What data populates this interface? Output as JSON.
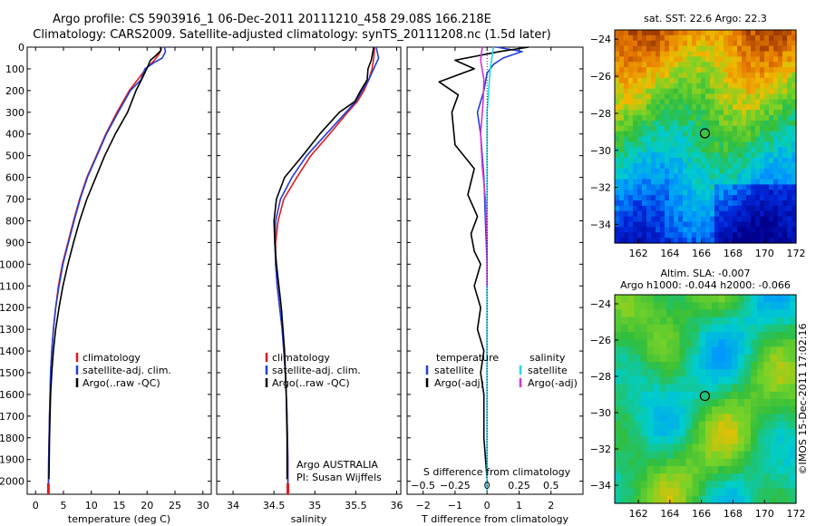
{
  "header": {
    "line1": "Argo profile: CS 5903916_1 06-Dec-2011 20111210_458 29.08S 166.218E",
    "line2": "Climatology: CARS2009. Satellite-adjusted climatology: synTS_20111208.nc (1.5d later)"
  },
  "side_label": "©IMOS 15-Dec-2011 17:02:16",
  "colors": {
    "climatology": "#e41a1c",
    "satellite": "#1f3fd8",
    "argo": "#000000",
    "sat_salinity": "#22d8e6",
    "argo_salinity": "#d633d6"
  },
  "chart_data": [
    {
      "id": "temperature",
      "type": "line",
      "xlabel": "temperature (deg C)",
      "xticks": [
        0,
        5,
        10,
        15,
        20,
        25,
        30
      ],
      "xlim": [
        -1.5,
        31.5
      ],
      "ylabel": "",
      "yticks": [
        0,
        100,
        200,
        300,
        400,
        500,
        600,
        700,
        800,
        900,
        1000,
        1100,
        1200,
        1300,
        1400,
        1500,
        1600,
        1700,
        1800,
        1900,
        2000
      ],
      "ylim": [
        0,
        2060
      ],
      "y_inverted": true,
      "legend": [
        "climatology",
        "satellite-adj. clim.",
        "Argo(..raw -QC)"
      ],
      "legend_position": "lower-center",
      "series": [
        {
          "name": "climatology",
          "color": "#e41a1c",
          "x": [
            22.6,
            22.2,
            21.3,
            19.8,
            18.3,
            16.8,
            14.6,
            12.6,
            10.9,
            9.2,
            7.9,
            6.8,
            5.8,
            4.8,
            4.1,
            3.6,
            3.2,
            2.9,
            2.7,
            2.5,
            2.35,
            2.3
          ],
          "y": [
            0,
            30,
            60,
            100,
            150,
            200,
            300,
            400,
            500,
            600,
            700,
            800,
            900,
            1000,
            1100,
            1200,
            1300,
            1400,
            1500,
            1700,
            1900,
            2050
          ]
        },
        {
          "name": "satellite-adj. clim.",
          "color": "#1f3fd8",
          "x": [
            23.1,
            23.3,
            22.7,
            21.3,
            19.6,
            18.9,
            17.0,
            14.8,
            12.7,
            11.0,
            9.3,
            8.0,
            6.9,
            5.9,
            4.9,
            4.2,
            3.6,
            3.2,
            2.9,
            2.7,
            2.5,
            2.35,
            2.3
          ],
          "y": [
            0,
            20,
            50,
            70,
            100,
            150,
            200,
            300,
            400,
            500,
            600,
            700,
            800,
            900,
            1000,
            1100,
            1200,
            1300,
            1400,
            1500,
            1700,
            1900,
            2050
          ]
        },
        {
          "name": "Argo(..raw -QC)",
          "color": "#000000",
          "x": [
            22.4,
            22.5,
            21.5,
            20.6,
            20.1,
            19.0,
            18.0,
            16.5,
            14.3,
            12.4,
            10.8,
            9.2,
            7.9,
            6.8,
            5.8,
            4.9,
            4.2,
            3.6,
            3.2,
            2.9,
            2.7,
            2.5,
            2.4
          ],
          "y": [
            0,
            15,
            40,
            60,
            90,
            150,
            200,
            300,
            400,
            500,
            600,
            700,
            800,
            900,
            1000,
            1100,
            1200,
            1300,
            1400,
            1500,
            1600,
            1800,
            1990
          ]
        }
      ]
    },
    {
      "id": "salinity",
      "type": "line",
      "xlabel": "salinity",
      "xticks": [
        34,
        34.5,
        35,
        35.5,
        36
      ],
      "xlim": [
        33.8,
        36.05
      ],
      "yticks": [
        0,
        100,
        200,
        300,
        400,
        500,
        600,
        700,
        800,
        900,
        1000,
        1100,
        1200,
        1300,
        1400,
        1500,
        1600,
        1700,
        1800,
        1900,
        2000
      ],
      "ylim": [
        0,
        2060
      ],
      "y_inverted": true,
      "legend": [
        "climatology",
        "satellite-adj. clim.",
        "Argo(..raw -QC)"
      ],
      "legend_position": "lower-center",
      "annotation": [
        "Argo AUSTRALIA",
        "PI: Susan Wijffels"
      ],
      "series": [
        {
          "name": "climatology",
          "color": "#e41a1c",
          "x": [
            35.73,
            35.72,
            35.7,
            35.66,
            35.6,
            35.52,
            35.4,
            35.18,
            34.95,
            34.78,
            34.62,
            34.55,
            34.52,
            34.52,
            34.54,
            34.57,
            34.6,
            34.62,
            34.64,
            34.66,
            34.67,
            34.67
          ],
          "y": [
            0,
            50,
            100,
            150,
            200,
            250,
            300,
            400,
            500,
            600,
            700,
            800,
            900,
            1000,
            1100,
            1200,
            1300,
            1400,
            1500,
            1700,
            1900,
            2050
          ]
        },
        {
          "name": "satellite-adj. clim.",
          "color": "#1f3fd8",
          "x": [
            35.75,
            35.78,
            35.72,
            35.66,
            35.58,
            35.5,
            35.38,
            35.14,
            34.9,
            34.72,
            34.58,
            34.52,
            34.51,
            34.52,
            34.54,
            34.57,
            34.6,
            34.62,
            34.64,
            34.66,
            34.67,
            34.67
          ],
          "y": [
            0,
            50,
            100,
            150,
            200,
            250,
            300,
            400,
            500,
            600,
            700,
            800,
            900,
            1000,
            1100,
            1200,
            1300,
            1400,
            1500,
            1700,
            1900,
            2050
          ]
        },
        {
          "name": "Argo(..raw -QC)",
          "color": "#000000",
          "x": [
            35.72,
            35.69,
            35.65,
            35.64,
            35.56,
            35.49,
            35.3,
            35.06,
            34.85,
            34.63,
            34.53,
            34.5,
            34.51,
            34.53,
            34.56,
            34.59,
            34.61,
            34.63,
            34.65,
            34.66,
            34.66
          ],
          "y": [
            0,
            60,
            100,
            150,
            200,
            250,
            300,
            400,
            500,
            600,
            700,
            800,
            900,
            1000,
            1100,
            1200,
            1300,
            1400,
            1600,
            1800,
            1990
          ]
        }
      ]
    },
    {
      "id": "difference",
      "type": "line",
      "xlabel": "T difference from climatology",
      "xticks": [
        -2,
        -1,
        0,
        1,
        2
      ],
      "xlim": [
        -2.5,
        3.0
      ],
      "xlabel_top": "S difference from climatology",
      "xticks_top": [
        -0.5,
        -0.25,
        0,
        0.25,
        0.5
      ],
      "x_top_labels": [
        "−0.5",
        "−0.25",
        "0",
        "0.25",
        "0.5"
      ],
      "x_top_scale": 0.25,
      "yticks": [
        0,
        100,
        200,
        300,
        400,
        500,
        600,
        700,
        800,
        900,
        1000,
        1100,
        1200,
        1300,
        1400,
        1500,
        1600,
        1700,
        1800,
        1900,
        2000
      ],
      "ylim": [
        0,
        2060
      ],
      "y_inverted": true,
      "legend_groups": [
        {
          "title": "temperature",
          "items": [
            "satellite",
            "Argo(-adj)"
          ]
        },
        {
          "title": "salinity",
          "items": [
            "satellite",
            "Argo(-adj)"
          ]
        }
      ],
      "series": [
        {
          "name": "temperature satellite",
          "color": "#1f3fd8",
          "x": [
            0.3,
            1.1,
            0.5,
            0.2,
            0.0,
            -0.1,
            -0.3,
            -0.2,
            -0.1,
            -0.05,
            0.0,
            0.0,
            0.0,
            0.0,
            0.0
          ],
          "y": [
            0,
            20,
            50,
            80,
            120,
            200,
            300,
            400,
            600,
            800,
            1000,
            1200,
            1500,
            1800,
            2050
          ]
        },
        {
          "name": "temperature Argo(-adj)",
          "color": "#000000",
          "x": [
            1.3,
            0.4,
            -0.3,
            -1.0,
            -0.4,
            -1.5,
            -0.9,
            -1.1,
            -1.0,
            -0.4,
            -0.6,
            -0.3,
            -0.5,
            -0.4,
            -0.2,
            -0.4,
            -0.2,
            -0.3,
            -0.1,
            -0.2,
            -0.1,
            -0.1,
            0.0
          ],
          "y": [
            0,
            20,
            40,
            60,
            100,
            160,
            220,
            300,
            450,
            560,
            680,
            780,
            860,
            940,
            1000,
            1100,
            1200,
            1300,
            1400,
            1500,
            1600,
            1800,
            1990
          ]
        },
        {
          "name": "salinity satellite",
          "color": "#22d8e6",
          "x": [
            0.2,
            0.1,
            0.0,
            0.0,
            0.0,
            0.0,
            0.0,
            0.0
          ],
          "y": [
            0,
            100,
            300,
            600,
            900,
            1200,
            1600,
            2050
          ]
        },
        {
          "name": "salinity Argo(-adj)",
          "color": "#d633d6",
          "x": [
            -0.15,
            -0.2,
            -0.1,
            -0.12,
            -0.2,
            -0.15,
            -0.05,
            0.0,
            0.0
          ],
          "y": [
            0,
            60,
            150,
            250,
            400,
            550,
            700,
            900,
            1100
          ]
        }
      ]
    },
    {
      "id": "sst_map",
      "type": "heatmap",
      "title": "sat. SST: 22.6  Argo: 22.3",
      "xticks": [
        162,
        164,
        166,
        168,
        170,
        172
      ],
      "xlim": [
        160.5,
        172
      ],
      "yticks": [
        -24,
        -26,
        -28,
        -30,
        -32,
        -34
      ],
      "ylim": [
        -35,
        -23.5
      ],
      "marker": {
        "lon": 166.218,
        "lat": -29.08
      }
    },
    {
      "id": "sla_map",
      "type": "heatmap",
      "title": [
        "Altim. SLA: -0.007",
        "Argo h1000: -0.044 h2000: -0.066"
      ],
      "xticks": [
        162,
        164,
        166,
        168,
        170,
        172
      ],
      "xlim": [
        160.5,
        172
      ],
      "yticks": [
        -24,
        -26,
        -28,
        -30,
        -32,
        -34
      ],
      "ylim": [
        -35,
        -23.5
      ],
      "marker": {
        "lon": 166.218,
        "lat": -29.08
      }
    }
  ]
}
